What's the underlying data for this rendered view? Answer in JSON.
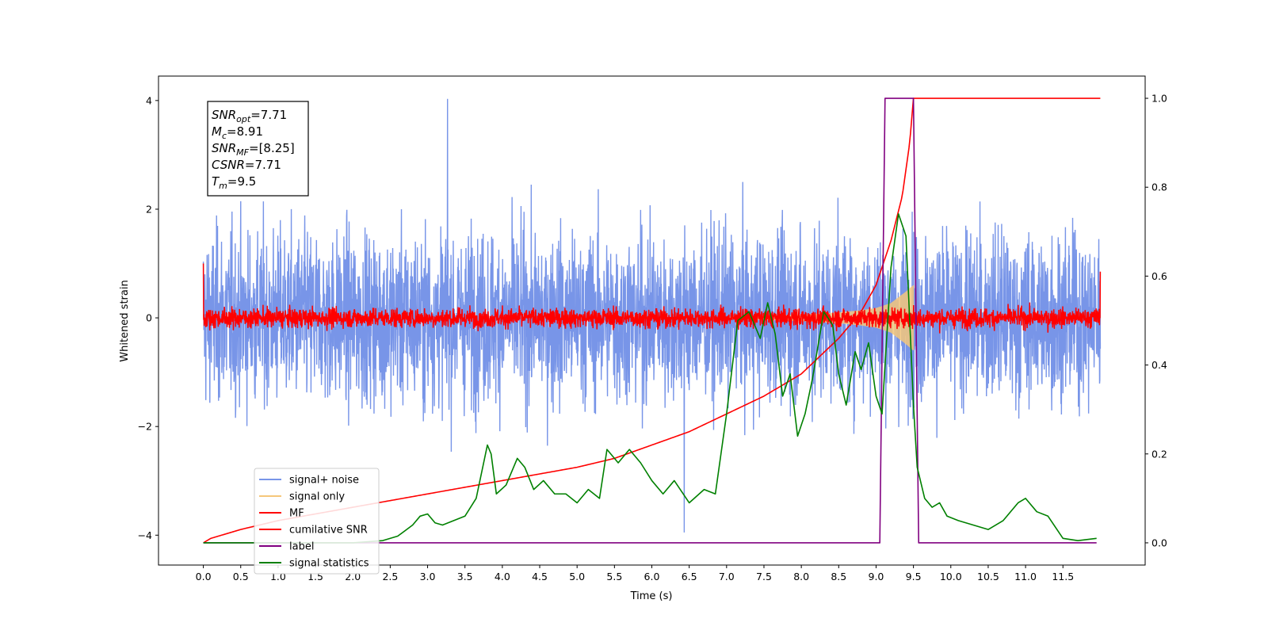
{
  "chart_data": {
    "type": "line",
    "xlabel": "Time (s)",
    "ylabel": "Whitened strain",
    "xlim": [
      -0.6,
      12.6
    ],
    "ylim": [
      -4.55,
      4.45
    ],
    "y2lim": [
      -0.05,
      1.05
    ],
    "x_ticks": [
      "0.0",
      "0.5",
      "1.0",
      "1.5",
      "2.0",
      "2.5",
      "3.0",
      "3.5",
      "4.0",
      "4.5",
      "5.0",
      "5.5",
      "6.0",
      "6.5",
      "7.0",
      "7.5",
      "8.0",
      "8.5",
      "9.0",
      "9.5",
      "10.0",
      "10.5",
      "11.0",
      "11.5"
    ],
    "y_ticks": [
      "4",
      "2",
      "0",
      "−2",
      "−4"
    ],
    "y2_ticks": [
      "1.0",
      "0.8",
      "0.6",
      "0.4",
      "0.2",
      "0.0"
    ],
    "grid": false,
    "legend_position": "lower-left",
    "annotation": {
      "lines": [
        {
          "base": "SNR",
          "sub": "opt",
          "value": "=7.71"
        },
        {
          "base": "M",
          "sub": "c",
          "value": "=8.91"
        },
        {
          "base": "SNR",
          "sub": "MF",
          "value": "=[8.25]"
        },
        {
          "base": "CSNR",
          "sub": "",
          "value": "=7.71"
        },
        {
          "base": "T",
          "sub": "m",
          "value": "=9.5"
        }
      ]
    },
    "series": [
      {
        "name": "signal+ noise",
        "color": "#7895e8",
        "axis": "left",
        "x_range": [
          0.0,
          12.0
        ],
        "noise_std": 1.0,
        "peak_max": 4.03,
        "peak_min": -3.95
      },
      {
        "name": "signal only",
        "color": "#f5c77a",
        "axis": "left",
        "x_range": [
          7.0,
          9.5
        ],
        "envelope": [
          [
            7.0,
            0.02
          ],
          [
            8.0,
            0.06
          ],
          [
            8.5,
            0.1
          ],
          [
            8.8,
            0.14
          ],
          [
            9.0,
            0.18
          ],
          [
            9.2,
            0.27
          ],
          [
            9.4,
            0.48
          ],
          [
            9.5,
            0.6
          ]
        ]
      },
      {
        "name": "MF",
        "color": "#ff0000",
        "axis": "left",
        "x_range": [
          0.0,
          12.0
        ],
        "noise_std": 0.12,
        "edge_values": [
          1.0,
          0.85
        ]
      },
      {
        "name": "cumilative SNR",
        "color": "#ff0000",
        "axis": "right",
        "x": [
          0.0,
          0.1,
          0.5,
          1.0,
          2.0,
          3.0,
          4.0,
          5.0,
          5.5,
          6.0,
          6.5,
          7.0,
          7.5,
          8.0,
          8.5,
          8.8,
          9.0,
          9.2,
          9.35,
          9.45,
          9.5,
          12.0
        ],
        "values": [
          0.0,
          0.01,
          0.03,
          0.05,
          0.08,
          0.11,
          0.14,
          0.17,
          0.19,
          0.22,
          0.25,
          0.29,
          0.33,
          0.38,
          0.46,
          0.52,
          0.58,
          0.68,
          0.78,
          0.9,
          1.0,
          1.0
        ]
      },
      {
        "name": "label",
        "color": "#800080",
        "axis": "right",
        "x": [
          0.0,
          9.05,
          9.12,
          9.5,
          9.57,
          11.95
        ],
        "values": [
          0.0,
          0.0,
          1.0,
          1.0,
          0.0,
          0.0
        ]
      },
      {
        "name": "signal statistics",
        "color": "#008000",
        "axis": "right",
        "x": [
          0.0,
          0.5,
          1.0,
          1.5,
          2.0,
          2.4,
          2.6,
          2.8,
          2.9,
          3.0,
          3.1,
          3.2,
          3.35,
          3.5,
          3.65,
          3.8,
          3.85,
          3.92,
          4.05,
          4.2,
          4.3,
          4.42,
          4.55,
          4.7,
          4.85,
          5.0,
          5.15,
          5.3,
          5.4,
          5.55,
          5.7,
          5.85,
          6.0,
          6.15,
          6.3,
          6.5,
          6.7,
          6.85,
          7.0,
          7.15,
          7.3,
          7.45,
          7.55,
          7.65,
          7.75,
          7.85,
          7.95,
          8.05,
          8.15,
          8.3,
          8.42,
          8.5,
          8.6,
          8.72,
          8.8,
          8.9,
          9.0,
          9.08,
          9.2,
          9.3,
          9.4,
          9.5,
          9.55,
          9.65,
          9.75,
          9.85,
          9.95,
          10.1,
          10.3,
          10.5,
          10.7,
          10.9,
          11.0,
          11.15,
          11.3,
          11.5,
          11.7,
          11.95
        ],
        "values": [
          0.0,
          0.0,
          0.0,
          0.0,
          0.0,
          0.005,
          0.015,
          0.04,
          0.06,
          0.065,
          0.045,
          0.04,
          0.05,
          0.06,
          0.1,
          0.22,
          0.2,
          0.11,
          0.13,
          0.19,
          0.17,
          0.12,
          0.14,
          0.11,
          0.11,
          0.09,
          0.12,
          0.1,
          0.21,
          0.18,
          0.21,
          0.18,
          0.14,
          0.11,
          0.14,
          0.09,
          0.12,
          0.11,
          0.29,
          0.5,
          0.52,
          0.46,
          0.54,
          0.47,
          0.33,
          0.38,
          0.24,
          0.29,
          0.37,
          0.52,
          0.49,
          0.38,
          0.31,
          0.43,
          0.39,
          0.45,
          0.33,
          0.29,
          0.62,
          0.74,
          0.69,
          0.31,
          0.17,
          0.1,
          0.08,
          0.09,
          0.06,
          0.05,
          0.04,
          0.03,
          0.05,
          0.09,
          0.1,
          0.07,
          0.06,
          0.01,
          0.005,
          0.01
        ]
      }
    ]
  }
}
